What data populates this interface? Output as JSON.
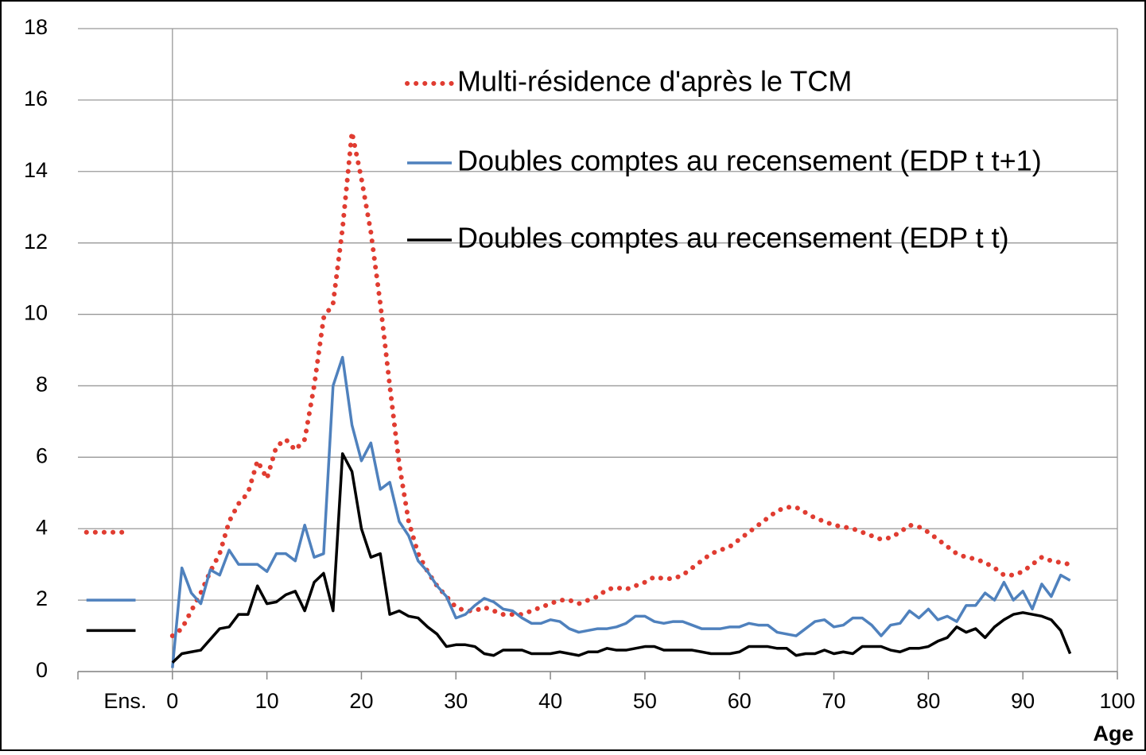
{
  "chart_data": {
    "type": "line",
    "x_label": "Age",
    "x": [
      0,
      1,
      2,
      3,
      4,
      5,
      6,
      7,
      8,
      9,
      10,
      11,
      12,
      13,
      14,
      15,
      16,
      17,
      18,
      19,
      20,
      21,
      22,
      23,
      24,
      25,
      26,
      27,
      28,
      29,
      30,
      31,
      32,
      33,
      34,
      35,
      36,
      37,
      38,
      39,
      40,
      41,
      42,
      43,
      44,
      45,
      46,
      47,
      48,
      49,
      50,
      51,
      52,
      53,
      54,
      55,
      56,
      57,
      58,
      59,
      60,
      61,
      62,
      63,
      64,
      65,
      66,
      67,
      68,
      69,
      70,
      71,
      72,
      73,
      74,
      75,
      76,
      77,
      78,
      79,
      80,
      81,
      82,
      83,
      84,
      85,
      86,
      87,
      88,
      89,
      90,
      91,
      92,
      93,
      94,
      95
    ],
    "xlim": [
      -10,
      100
    ],
    "xticks": [
      {
        "value": -5,
        "label": "Ens."
      },
      0,
      10,
      20,
      30,
      40,
      50,
      60,
      70,
      80,
      90,
      100
    ],
    "ylim": [
      0,
      18
    ],
    "yticks": [
      0,
      2,
      4,
      6,
      8,
      10,
      12,
      14,
      16,
      18
    ],
    "grid": true,
    "series": [
      {
        "name": "Multi-résidence d'après le TCM",
        "color": "#e03c31",
        "style": "dotted",
        "overall": 3.9,
        "values": [
          1.0,
          1.2,
          1.7,
          2.2,
          2.8,
          3.3,
          4.2,
          4.7,
          5.0,
          5.9,
          5.4,
          6.3,
          6.5,
          6.2,
          6.5,
          8.0,
          9.9,
          10.3,
          12.4,
          15.1,
          13.8,
          12.3,
          10.3,
          8.0,
          5.8,
          4.2,
          3.3,
          2.8,
          2.4,
          2.1,
          1.8,
          1.7,
          1.7,
          1.8,
          1.7,
          1.6,
          1.6,
          1.6,
          1.7,
          1.8,
          1.9,
          2.0,
          2.0,
          1.9,
          2.0,
          2.1,
          2.3,
          2.35,
          2.3,
          2.4,
          2.5,
          2.65,
          2.6,
          2.6,
          2.7,
          2.9,
          3.1,
          3.3,
          3.4,
          3.5,
          3.7,
          3.9,
          4.1,
          4.3,
          4.5,
          4.6,
          4.6,
          4.45,
          4.3,
          4.2,
          4.1,
          4.05,
          4.0,
          3.9,
          3.8,
          3.7,
          3.75,
          3.9,
          4.1,
          4.05,
          3.9,
          3.7,
          3.5,
          3.3,
          3.2,
          3.15,
          3.05,
          2.9,
          2.7,
          2.7,
          2.8,
          3.0,
          3.2,
          3.1,
          3.05,
          3.0
        ]
      },
      {
        "name": "Doubles comptes au recensement (EDP t t+1)",
        "color": "#4f81bd",
        "style": "solid",
        "overall": 2.0,
        "values": [
          0.1,
          2.9,
          2.2,
          1.9,
          2.85,
          2.7,
          3.4,
          3.0,
          3.0,
          3.0,
          2.8,
          3.3,
          3.3,
          3.1,
          4.1,
          3.2,
          3.3,
          8.0,
          8.8,
          6.9,
          5.9,
          6.4,
          5.1,
          5.3,
          4.2,
          3.8,
          3.1,
          2.8,
          2.4,
          2.1,
          1.5,
          1.6,
          1.85,
          2.05,
          1.95,
          1.75,
          1.7,
          1.5,
          1.35,
          1.35,
          1.45,
          1.4,
          1.2,
          1.1,
          1.15,
          1.2,
          1.2,
          1.25,
          1.35,
          1.55,
          1.55,
          1.4,
          1.35,
          1.4,
          1.4,
          1.3,
          1.2,
          1.2,
          1.2,
          1.25,
          1.25,
          1.35,
          1.3,
          1.3,
          1.1,
          1.05,
          1.0,
          1.2,
          1.4,
          1.45,
          1.25,
          1.3,
          1.5,
          1.5,
          1.3,
          1.0,
          1.3,
          1.35,
          1.7,
          1.5,
          1.75,
          1.45,
          1.55,
          1.4,
          1.85,
          1.85,
          2.2,
          2.0,
          2.5,
          2.0,
          2.25,
          1.75,
          2.45,
          2.1,
          2.7,
          2.55
        ]
      },
      {
        "name": "Doubles comptes au recensement (EDP t t)",
        "color": "#000000",
        "style": "solid",
        "overall": 1.15,
        "values": [
          0.25,
          0.5,
          0.55,
          0.6,
          0.9,
          1.2,
          1.25,
          1.6,
          1.6,
          2.4,
          1.9,
          1.95,
          2.15,
          2.25,
          1.7,
          2.5,
          2.75,
          1.7,
          6.1,
          5.6,
          4.0,
          3.2,
          3.3,
          1.6,
          1.7,
          1.55,
          1.5,
          1.25,
          1.05,
          0.7,
          0.75,
          0.75,
          0.7,
          0.5,
          0.45,
          0.6,
          0.6,
          0.6,
          0.5,
          0.5,
          0.5,
          0.55,
          0.5,
          0.45,
          0.55,
          0.55,
          0.65,
          0.6,
          0.6,
          0.65,
          0.7,
          0.7,
          0.6,
          0.6,
          0.6,
          0.6,
          0.55,
          0.5,
          0.5,
          0.5,
          0.55,
          0.7,
          0.7,
          0.7,
          0.65,
          0.65,
          0.45,
          0.5,
          0.5,
          0.6,
          0.5,
          0.55,
          0.5,
          0.7,
          0.7,
          0.7,
          0.6,
          0.55,
          0.65,
          0.65,
          0.7,
          0.85,
          0.95,
          1.25,
          1.1,
          1.2,
          0.95,
          1.25,
          1.45,
          1.6,
          1.65,
          1.6,
          1.55,
          1.45,
          1.15,
          0.5
        ]
      }
    ]
  }
}
